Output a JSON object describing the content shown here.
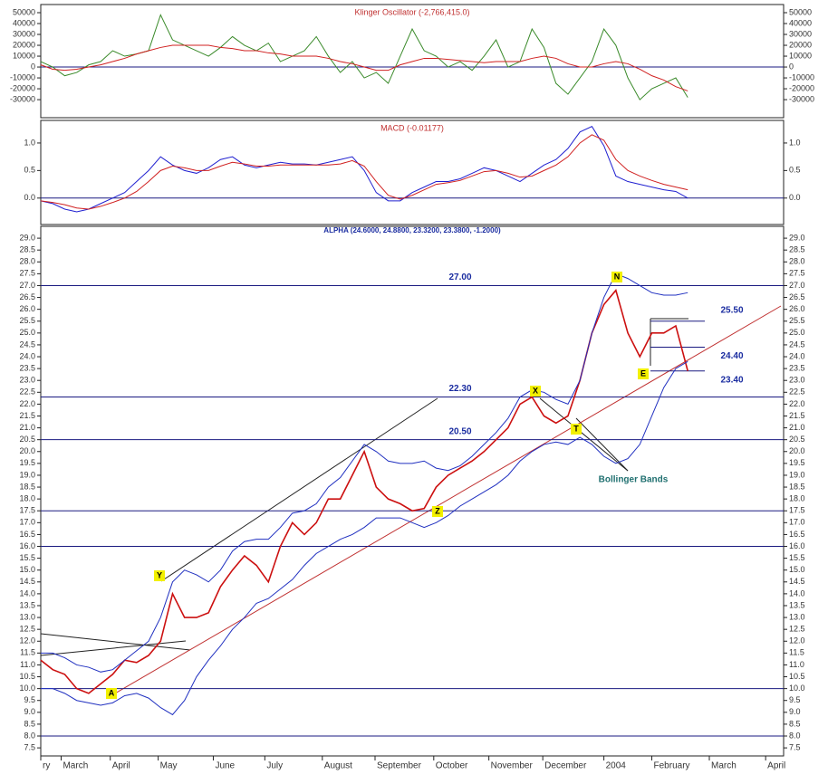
{
  "chart_data": [
    {
      "type": "line",
      "title": "Klinger Oscillator (-2,766,415.0)",
      "xlim": [
        0,
        62
      ],
      "x": [
        0,
        1,
        2,
        3,
        4,
        5,
        6,
        7,
        8,
        9,
        10,
        11,
        12,
        13,
        14,
        15,
        16,
        17,
        18,
        19,
        20,
        21,
        22,
        23,
        24,
        25,
        26,
        27,
        28,
        29,
        30,
        31,
        32,
        33,
        34,
        35,
        36,
        37,
        38,
        39,
        40,
        41,
        42,
        43,
        44,
        45,
        46,
        47,
        48,
        49,
        50,
        51,
        52,
        53,
        54
      ],
      "ylim": [
        -46600,
        57500
      ],
      "yticks": [
        50000,
        40000,
        30000,
        20000,
        10000,
        0,
        -10000,
        -20000,
        -30000
      ],
      "series": [
        {
          "color": "#3a8a2a",
          "values": [
            5000,
            0,
            -8000,
            -5000,
            2000,
            5000,
            15000,
            10000,
            12000,
            15000,
            48000,
            25000,
            20000,
            15000,
            10000,
            18000,
            28000,
            20000,
            15000,
            22000,
            5000,
            10000,
            15000,
            28000,
            10000,
            -5000,
            5000,
            -10000,
            -5000,
            -15000,
            10000,
            35000,
            15000,
            10000,
            0,
            5000,
            -3000,
            10000,
            25000,
            0,
            5000,
            35000,
            18000,
            -15000,
            -25000,
            -10000,
            5000,
            35000,
            20000,
            -10000,
            -30000,
            -20000,
            -15000,
            -10000,
            -28000
          ]
        },
        {
          "color": "#d02020",
          "values": [
            2000,
            -2000,
            -3000,
            -2000,
            0,
            2000,
            5000,
            8000,
            12000,
            15000,
            18000,
            20000,
            20000,
            20000,
            20000,
            18000,
            17000,
            15000,
            15000,
            13000,
            12000,
            10000,
            10000,
            10000,
            8000,
            5000,
            3000,
            0,
            -3000,
            -3000,
            2000,
            5000,
            8000,
            8000,
            7000,
            6000,
            5000,
            4000,
            5000,
            5000,
            5000,
            8000,
            10000,
            8000,
            3000,
            0,
            0,
            3000,
            5000,
            3000,
            -2000,
            -8000,
            -12000,
            -18000,
            -22000
          ]
        }
      ]
    },
    {
      "type": "line",
      "title": "MACD (-0.01177)",
      "xlim": [
        0,
        62
      ],
      "x": [
        0,
        1,
        2,
        3,
        4,
        5,
        6,
        7,
        8,
        9,
        10,
        11,
        12,
        13,
        14,
        15,
        16,
        17,
        18,
        19,
        20,
        21,
        22,
        23,
        24,
        25,
        26,
        27,
        28,
        29,
        30,
        31,
        32,
        33,
        34,
        35,
        36,
        37,
        38,
        39,
        40,
        41,
        42,
        43,
        44,
        45,
        46,
        47,
        48,
        49,
        50,
        51,
        52,
        53,
        54
      ],
      "ylim": [
        -0.48,
        1.41
      ],
      "yticks": [
        {
          "value": 0,
          "label": "0.0"
        },
        0.5,
        {
          "value": 1,
          "label": "1.0"
        }
      ],
      "series": [
        {
          "color": "#2020d0",
          "values": [
            -0.05,
            -0.1,
            -0.2,
            -0.25,
            -0.2,
            -0.1,
            0,
            0.1,
            0.3,
            0.5,
            0.75,
            0.6,
            0.5,
            0.45,
            0.55,
            0.7,
            0.75,
            0.6,
            0.55,
            0.6,
            0.65,
            0.62,
            0.62,
            0.6,
            0.65,
            0.7,
            0.75,
            0.5,
            0.1,
            -0.05,
            -0.05,
            0.1,
            0.2,
            0.3,
            0.3,
            0.35,
            0.45,
            0.55,
            0.5,
            0.4,
            0.3,
            0.45,
            0.6,
            0.7,
            0.9,
            1.2,
            1.3,
            0.95,
            0.4,
            0.3,
            0.25,
            0.2,
            0.15,
            0.12,
            0
          ]
        },
        {
          "color": "#d02020",
          "values": [
            -0.05,
            -0.08,
            -0.12,
            -0.18,
            -0.2,
            -0.15,
            -0.08,
            0,
            0.12,
            0.3,
            0.5,
            0.58,
            0.55,
            0.5,
            0.5,
            0.58,
            0.65,
            0.62,
            0.58,
            0.58,
            0.6,
            0.6,
            0.6,
            0.6,
            0.6,
            0.62,
            0.68,
            0.58,
            0.3,
            0.05,
            -0.02,
            0.05,
            0.15,
            0.25,
            0.28,
            0.32,
            0.4,
            0.48,
            0.5,
            0.45,
            0.38,
            0.4,
            0.5,
            0.6,
            0.75,
            1.0,
            1.15,
            1.05,
            0.7,
            0.5,
            0.4,
            0.32,
            0.25,
            0.2,
            0.15
          ]
        }
      ]
    },
    {
      "type": "line",
      "title": "ALPHA (24.6000, 24.8800, 23.3200, 23.3800, -1.2000)",
      "xlim": [
        0,
        62
      ],
      "x": [
        0,
        1,
        2,
        3,
        4,
        5,
        6,
        7,
        8,
        9,
        10,
        11,
        12,
        13,
        14,
        15,
        16,
        17,
        18,
        19,
        20,
        21,
        22,
        23,
        24,
        25,
        26,
        27,
        28,
        29,
        30,
        31,
        32,
        33,
        34,
        35,
        36,
        37,
        38,
        39,
        40,
        41,
        42,
        43,
        44,
        45,
        46,
        47,
        48,
        49,
        50,
        51,
        52,
        53,
        54
      ],
      "xticks": [
        {
          "value": 0,
          "label": "ry"
        },
        {
          "value": 1.7,
          "label": "March"
        },
        {
          "value": 5.8,
          "label": "April"
        },
        {
          "value": 9.8,
          "label": "May"
        },
        {
          "value": 14.4,
          "label": "June"
        },
        {
          "value": 18.7,
          "label": "July"
        },
        {
          "value": 23.5,
          "label": "August"
        },
        {
          "value": 27.9,
          "label": "September"
        },
        {
          "value": 32.8,
          "label": "October"
        },
        {
          "value": 37.4,
          "label": "November"
        },
        {
          "value": 41.9,
          "label": "December"
        },
        {
          "value": 47,
          "label": "2004"
        },
        {
          "value": 51,
          "label": "February"
        },
        {
          "value": 55.8,
          "label": "March"
        },
        {
          "value": 60.5,
          "label": "April"
        }
      ],
      "ylim": [
        7.16,
        29.5
      ],
      "yticks": [
        7.5,
        {
          "value": 8,
          "label": "8.0"
        },
        8.5,
        {
          "value": 9,
          "label": "9.0"
        },
        9.5,
        {
          "value": 10,
          "label": "10.0"
        },
        10.5,
        {
          "value": 11,
          "label": "11.0"
        },
        11.5,
        {
          "value": 12,
          "label": "12.0"
        },
        12.5,
        {
          "value": 13,
          "label": "13.0"
        },
        13.5,
        {
          "value": 14,
          "label": "14.0"
        },
        14.5,
        {
          "value": 15,
          "label": "15.0"
        },
        15.5,
        {
          "value": 16,
          "label": "16.0"
        },
        16.5,
        {
          "value": 17,
          "label": "17.0"
        },
        17.5,
        {
          "value": 18,
          "label": "18.0"
        },
        18.5,
        {
          "value": 19,
          "label": "19.0"
        },
        19.5,
        {
          "value": 20,
          "label": "20.0"
        },
        20.5,
        {
          "value": 21,
          "label": "21.0"
        },
        21.5,
        {
          "value": 22,
          "label": "22.0"
        },
        22.5,
        {
          "value": 23,
          "label": "23.0"
        },
        23.5,
        {
          "value": 24,
          "label": "24.0"
        },
        24.5,
        {
          "value": 25,
          "label": "25.0"
        },
        25.5,
        {
          "value": 26,
          "label": "26.0"
        },
        26.5,
        {
          "value": 27,
          "label": "27.0"
        },
        27.5,
        {
          "value": 28,
          "label": "28.0"
        },
        28.5,
        {
          "value": 29,
          "label": "29.0"
        }
      ],
      "series": [
        {
          "color": "#cc1010",
          "values": [
            11.2,
            10.8,
            10.6,
            10.0,
            9.8,
            10.2,
            10.6,
            11.2,
            11.1,
            11.4,
            12.0,
            14.0,
            13.0,
            13.0,
            13.2,
            14.3,
            15.0,
            15.6,
            15.2,
            14.5,
            16.0,
            17.0,
            16.5,
            17.0,
            18.0,
            18.0,
            19.0,
            20.0,
            18.5,
            18.0,
            17.8,
            17.5,
            17.6,
            18.5,
            19.0,
            19.3,
            19.6,
            20.0,
            20.5,
            21.0,
            22.0,
            22.3,
            21.5,
            21.2,
            21.5,
            23.0,
            25.0,
            26.2,
            26.8,
            25.0,
            24.0,
            25.0,
            25.0,
            25.3,
            23.4
          ]
        },
        {
          "color": "#2030c0",
          "values": [
            11.5,
            11.5,
            11.3,
            11.0,
            10.9,
            10.7,
            10.8,
            11.2,
            11.6,
            12.0,
            13.0,
            14.5,
            15.0,
            14.8,
            14.5,
            15.0,
            15.8,
            16.2,
            16.3,
            16.3,
            16.8,
            17.4,
            17.5,
            17.8,
            18.5,
            18.9,
            19.6,
            20.3,
            20.0,
            19.6,
            19.5,
            19.5,
            19.6,
            19.3,
            19.2,
            19.4,
            19.8,
            20.3,
            20.8,
            21.4,
            22.3,
            22.6,
            22.5,
            22.2,
            22.0,
            23.0,
            25.0,
            26.5,
            27.5,
            27.3,
            27.0,
            26.7,
            26.6,
            26.6,
            26.7
          ]
        },
        {
          "color": "#2030c0",
          "values": [
            10.0,
            10.0,
            9.8,
            9.5,
            9.4,
            9.3,
            9.4,
            9.7,
            9.8,
            9.6,
            9.2,
            8.9,
            9.5,
            10.5,
            11.2,
            11.8,
            12.5,
            13.0,
            13.6,
            13.8,
            14.2,
            14.6,
            15.2,
            15.7,
            16.0,
            16.3,
            16.5,
            16.8,
            17.2,
            17.2,
            17.2,
            17.0,
            16.8,
            17.0,
            17.3,
            17.7,
            18.0,
            18.3,
            18.6,
            19.0,
            19.6,
            20.0,
            20.3,
            20.4,
            20.3,
            20.6,
            20.3,
            19.8,
            19.5,
            19.7,
            20.3,
            21.5,
            22.7,
            23.5,
            23.8
          ]
        }
      ],
      "levels": [
        {
          "value": 27,
          "label": "27.00"
        },
        {
          "value": 22.3,
          "label": "22.30"
        },
        {
          "value": 20.5,
          "label": "20.50"
        },
        17.5,
        16,
        10,
        8
      ],
      "short_levels": [
        {
          "value": 25.5,
          "label": "25.50"
        },
        {
          "value": 24.4,
          "label": "24.40"
        },
        {
          "value": 23.4,
          "label": "23.40"
        }
      ],
      "markers": [
        "A",
        "Y",
        "Z",
        "X",
        "T",
        "N",
        "E"
      ],
      "annotation": "Bollinger Bands"
    }
  ]
}
